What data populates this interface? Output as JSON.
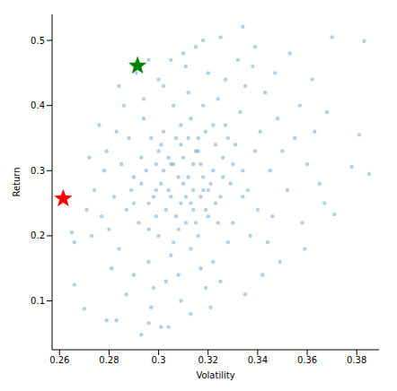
{
  "chart_data": {
    "type": "scatter",
    "x_label": "Volatility",
    "y_label": "Return",
    "xlim": [
      0.257,
      0.389
    ],
    "ylim": [
      0.025,
      0.54
    ],
    "xticks": [
      0.26,
      0.28,
      0.3,
      0.32,
      0.34,
      0.36,
      0.38
    ],
    "yticks": [
      0.1,
      0.2,
      0.3,
      0.4,
      0.5
    ],
    "grid": false,
    "series": [
      {
        "color": "#1f77b4",
        "marker": "circle",
        "x": [
          0.312,
          0.305,
          0.318,
          0.309,
          0.315,
          0.301,
          0.322,
          0.298,
          0.326,
          0.311,
          0.307,
          0.319,
          0.295,
          0.314,
          0.303,
          0.329,
          0.317,
          0.308,
          0.3,
          0.323,
          0.313,
          0.296,
          0.331,
          0.306,
          0.32,
          0.289,
          0.334,
          0.302,
          0.316,
          0.293,
          0.327,
          0.31,
          0.304,
          0.321,
          0.299,
          0.314,
          0.309,
          0.325,
          0.297,
          0.318,
          0.287,
          0.336,
          0.305,
          0.312,
          0.294,
          0.33,
          0.316,
          0.3,
          0.324,
          0.29,
          0.339,
          0.308,
          0.285,
          0.32,
          0.296,
          0.333,
          0.306,
          0.313,
          0.328,
          0.292,
          0.341,
          0.282,
          0.302,
          0.317,
          0.335,
          0.288,
          0.345,
          0.298,
          0.322,
          0.28,
          0.311,
          0.34,
          0.294,
          0.327,
          0.303,
          0.348,
          0.284,
          0.319,
          0.337,
          0.291,
          0.309,
          0.35,
          0.278,
          0.343,
          0.3,
          0.315,
          0.325,
          0.286,
          0.352,
          0.277,
          0.332,
          0.297,
          0.344,
          0.283,
          0.355,
          0.313,
          0.274,
          0.338,
          0.305,
          0.321,
          0.29,
          0.357,
          0.279,
          0.346,
          0.309,
          0.317,
          0.304,
          0.323,
          0.299,
          0.314,
          0.307,
          0.32,
          0.311,
          0.302,
          0.326,
          0.316,
          0.308,
          0.319,
          0.296,
          0.33,
          0.312,
          0.305,
          0.324,
          0.31,
          0.301,
          0.318,
          0.293,
          0.328,
          0.315,
          0.306,
          0.322,
          0.299,
          0.313,
          0.334,
          0.29,
          0.36,
          0.362,
          0.273,
          0.365,
          0.272,
          0.358,
          0.276,
          0.347,
          0.281,
          0.363,
          0.368,
          0.359,
          0.353,
          0.271,
          0.367,
          0.287,
          0.342,
          0.335,
          0.349,
          0.284,
          0.296,
          0.339,
          0.383,
          0.381,
          0.385,
          0.27,
          0.279,
          0.301,
          0.296,
          0.293,
          0.334,
          0.37,
          0.266,
          0.265,
          0.266,
          0.371,
          0.378,
          0.318,
          0.325,
          0.31,
          0.283,
          0.304
        ],
        "values": [
          0.29,
          0.31,
          0.27,
          0.25,
          0.33,
          0.28,
          0.3,
          0.26,
          0.32,
          0.22,
          0.35,
          0.36,
          0.3,
          0.27,
          0.24,
          0.28,
          0.31,
          0.29,
          0.33,
          0.25,
          0.38,
          0.21,
          0.34,
          0.19,
          0.23,
          0.27,
          0.3,
          0.36,
          0.2,
          0.32,
          0.37,
          0.32,
          0.27,
          0.28,
          0.23,
          0.24,
          0.34,
          0.26,
          0.35,
          0.4,
          0.24,
          0.27,
          0.17,
          0.42,
          0.38,
          0.22,
          0.35,
          0.2,
          0.41,
          0.29,
          0.33,
          0.14,
          0.31,
          0.45,
          0.16,
          0.39,
          0.4,
          0.18,
          0.19,
          0.22,
          0.36,
          0.26,
          0.43,
          0.15,
          0.43,
          0.35,
          0.3,
          0.12,
          0.16,
          0.21,
          0.46,
          0.24,
          0.41,
          0.44,
          0.13,
          0.38,
          0.18,
          0.12,
          0.2,
          0.45,
          0.1,
          0.33,
          0.3,
          0.42,
          0.44,
          0.49,
          0.13,
          0.4,
          0.27,
          0.23,
          0.47,
          0.09,
          0.19,
          0.36,
          0.35,
          0.08,
          0.27,
          0.46,
          0.47,
          0.09,
          0.14,
          0.4,
          0.33,
          0.23,
          0.37,
          0.26,
          0.32,
          0.34,
          0.27,
          0.31,
          0.23,
          0.27,
          0.26,
          0.3,
          0.29,
          0.33,
          0.21,
          0.24,
          0.25,
          0.31,
          0.35,
          0.26,
          0.22,
          0.28,
          0.34,
          0.29,
          0.28,
          0.35,
          0.22,
          0.31,
          0.37,
          0.31,
          0.25,
          0.26,
          0.25,
          0.31,
          0.44,
          0.2,
          0.28,
          0.32,
          0.22,
          0.37,
          0.45,
          0.15,
          0.36,
          0.39,
          0.18,
          0.48,
          0.24,
          0.25,
          0.11,
          0.14,
          0.11,
          0.16,
          0.43,
          0.47,
          0.49,
          0.499,
          0.355,
          0.295,
          0.088,
          0.07,
          0.06,
          0.066,
          0.048,
          0.521,
          0.505,
          0.125,
          0.205,
          0.19,
          0.233,
          0.306,
          0.5,
          0.505,
          0.48,
          0.07,
          0.06
        ]
      },
      {
        "color": "#ff0000",
        "marker": "star",
        "x": [
          0.2615
        ],
        "values": [
          0.257
        ]
      },
      {
        "color": "#008000",
        "marker": "star",
        "x": [
          0.2915
        ],
        "values": [
          0.461
        ]
      }
    ]
  }
}
